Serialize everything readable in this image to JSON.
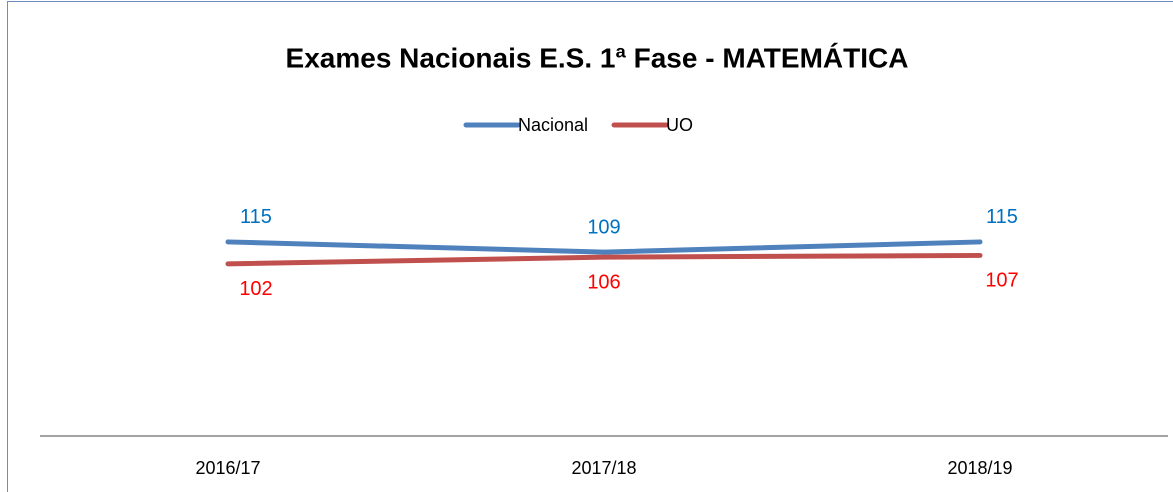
{
  "chart_data": {
    "type": "line",
    "title": "Exames Nacionais E.S. 1ª Fase - MATEMÁTICA",
    "categories": [
      "2016/17",
      "2017/18",
      "2018/19"
    ],
    "series": [
      {
        "name": "Nacional",
        "color": "#4f81bd",
        "label_color": "#0070c0",
        "values": [
          115,
          109,
          115
        ]
      },
      {
        "name": "UO",
        "color": "#c0504d",
        "label_color": "#ff0000",
        "values": [
          102,
          106,
          107
        ]
      }
    ],
    "ylim": [
      0,
      160
    ],
    "legend": "top"
  }
}
